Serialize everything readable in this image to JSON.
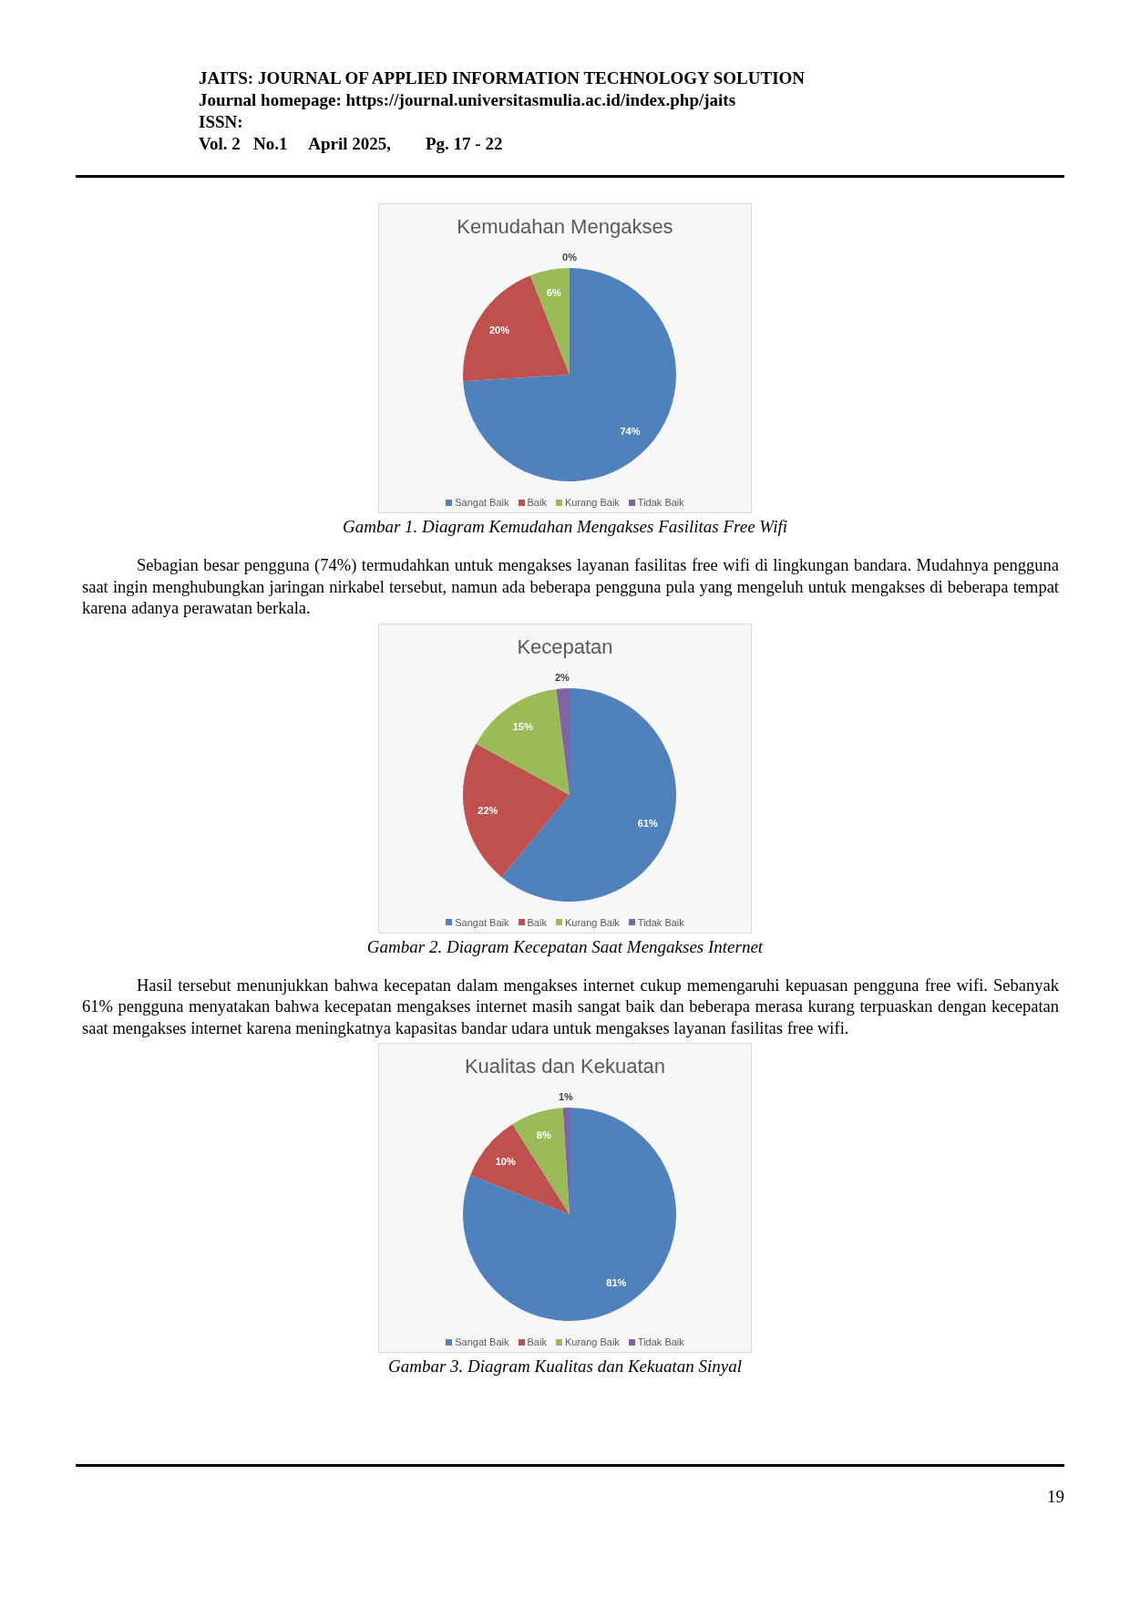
{
  "chart_data": [
    {
      "type": "pie",
      "title": "Kemudahan Mengakses",
      "categories": [
        "Sangat Baik",
        "Baik",
        "Kurang Baik",
        "Tidak Baik"
      ],
      "values": [
        74,
        20,
        6,
        0
      ],
      "value_labels": [
        "74%",
        "20%",
        "6%",
        "0%"
      ],
      "colors": [
        "#4f81bd",
        "#c0504d",
        "#9bbb59",
        "#8064a2"
      ],
      "legend": "bottom",
      "annotations": [
        "JAITS: JOURNAL OF APPLIED INFORMATION TECHNOLOGY SOLUTION",
        "Journal homepage: https://journal.universitasmulia.ac.id/index.php/jaits",
        "ISSN:",
        "Vol. 2   No.1     April 2025,        Pg. 17 - 22",
        "Gambar 1. Diagram Kemudahan Mengakses Fasilitas Free Wifi",
        "Sebagian besar pengguna (74%) termudahkan untuk mengakses layanan fasilitas free wifi di lingkungan bandara. Mudahnya pengguna saat ingin menghubungkan jaringan nirkabel tersebut, namun ada beberapa pengguna pula yang mengeluh untuk mengakses di beberapa tempat karena adanya perawatan berkala."
      ]
    },
    {
      "type": "pie",
      "title": "Kecepatan",
      "categories": [
        "Sangat Baik",
        "Baik",
        "Kurang Baik",
        "Tidak Baik"
      ],
      "values": [
        61,
        22,
        15,
        2
      ],
      "value_labels": [
        "61%",
        "22%",
        "15%",
        "2%"
      ],
      "colors": [
        "#4f81bd",
        "#c0504d",
        "#9bbb59",
        "#8064a2"
      ],
      "legend": "bottom",
      "annotations": [
        "Gambar 2. Diagram Kecepatan Saat Mengakses Internet",
        "Hasil tersebut menunjukkan bahwa kecepatan dalam mengakses internet cukup memengaruhi kepuasan pengguna free wifi. Sebanyak 61% pengguna menyatakan bahwa kecepatan mengakses internet masih sangat baik dan beberapa merasa kurang terpuaskan dengan kecepatan saat mengakses internet karena meningkatnya kapasitas bandar udara untuk mengakses layanan fasilitas free wifi."
      ]
    },
    {
      "type": "pie",
      "title": "Kualitas dan Kekuatan",
      "categories": [
        "Sangat Baik",
        "Baik",
        "Kurang Baik",
        "Tidak Baik"
      ],
      "values": [
        81,
        10,
        8,
        1
      ],
      "value_labels": [
        "81%",
        "10%",
        "8%",
        "1%"
      ],
      "colors": [
        "#4f81bd",
        "#c0504d",
        "#9bbb59",
        "#8064a2"
      ],
      "legend": "bottom",
      "annotations": [
        "Gambar 3. Diagram Kualitas dan Kekuatan Sinyal",
        "19"
      ]
    }
  ]
}
